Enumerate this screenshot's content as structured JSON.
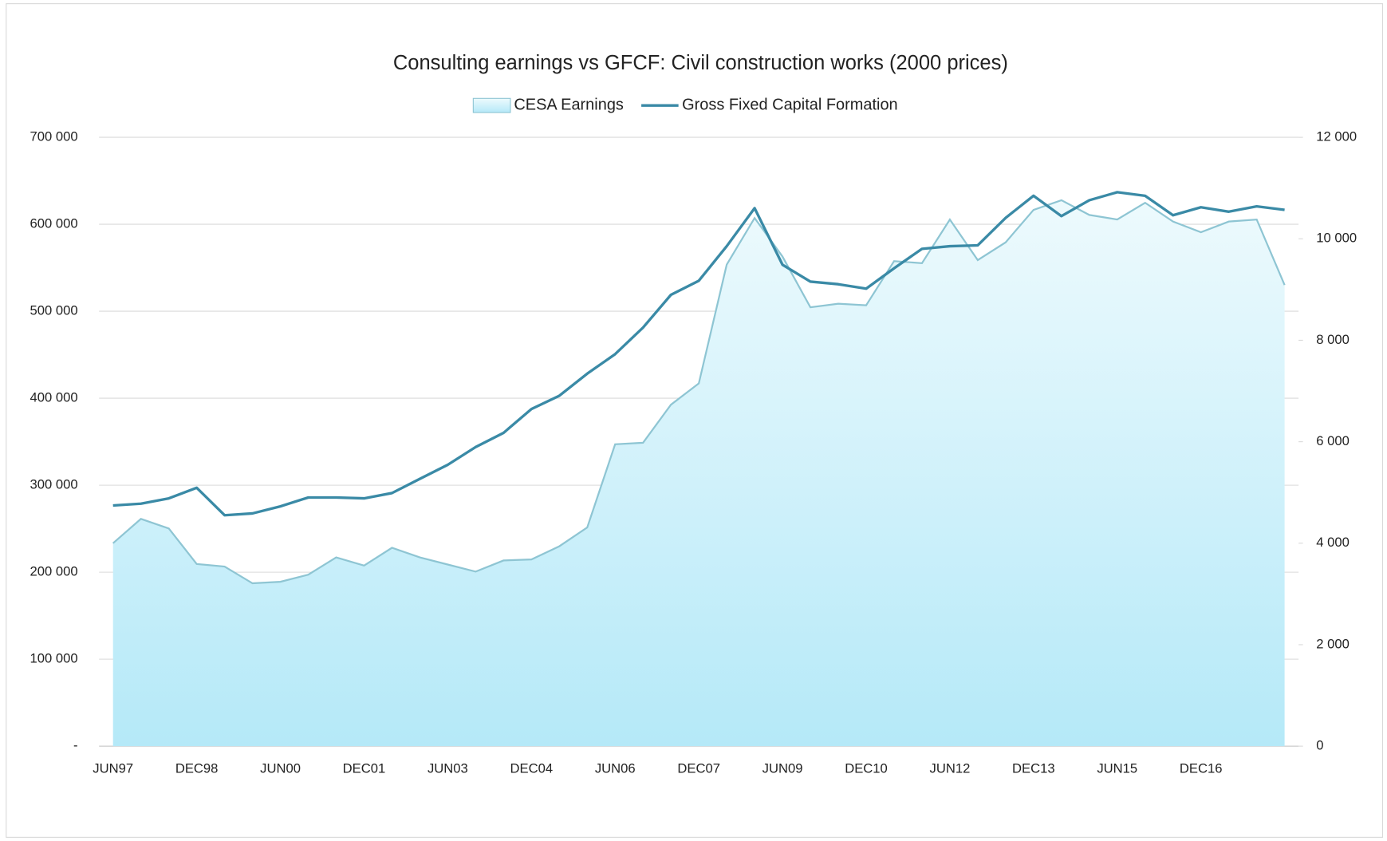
{
  "chart_data": {
    "type": "area-line",
    "title": "Consulting  earnings  vs GFCF:  Civil construction  works (2000 prices)",
    "categories": [
      "JUN97",
      null,
      null,
      "DEC98",
      null,
      null,
      "JUN00",
      null,
      null,
      "DEC01",
      null,
      null,
      "JUN03",
      null,
      null,
      "DEC04",
      null,
      null,
      "JUN06",
      null,
      null,
      "DEC07",
      null,
      null,
      "JUN09",
      null,
      null,
      "DEC10",
      null,
      null,
      "JUN12",
      null,
      null,
      "DEC13",
      null,
      null,
      "JUN15",
      null,
      null,
      "DEC16",
      null,
      null,
      null
    ],
    "series": [
      {
        "name": "CESA Earnings",
        "type": "area",
        "axis": "y2",
        "color": "#8ec5d3",
        "values": [
          4000,
          4480,
          4290,
          3590,
          3540,
          3210,
          3240,
          3380,
          3720,
          3560,
          3910,
          3720,
          3580,
          3440,
          3660,
          3680,
          3940,
          4310,
          5950,
          5980,
          6730,
          7150,
          9490,
          10410,
          9650,
          8650,
          8720,
          8690,
          9560,
          9520,
          10380,
          9580,
          9930,
          10570,
          10760,
          10470,
          10380,
          10710,
          10340,
          10130,
          10340,
          10380,
          9090
        ]
      },
      {
        "name": "Gross Fixed Capital Formation",
        "type": "line",
        "axis": "y",
        "color": "#3a8aa6",
        "values": [
          276700,
          278800,
          284900,
          297100,
          265500,
          267600,
          275700,
          285900,
          285900,
          284900,
          291000,
          307300,
          323500,
          343900,
          360200,
          387600,
          402900,
          428300,
          450700,
          481200,
          518900,
          535100,
          574800,
          618600,
          553500,
          534100,
          531100,
          526000,
          549400,
          571800,
          574800,
          575800,
          607400,
          632800,
          609400,
          627700,
          636900,
          632800,
          610400,
          619600,
          614500,
          620600,
          616600
        ]
      }
    ],
    "ylim": [
      0,
      700000
    ],
    "yticks": [
      {
        "value": 0,
        "label": "-"
      },
      {
        "value": 100000,
        "label": "100 000"
      },
      {
        "value": 200000,
        "label": "200 000"
      },
      {
        "value": 300000,
        "label": "300 000"
      },
      {
        "value": 400000,
        "label": "400 000"
      },
      {
        "value": 500000,
        "label": "500 000"
      },
      {
        "value": 600000,
        "label": "600 000"
      },
      {
        "value": 700000,
        "label": "700 000"
      }
    ],
    "y2lim": [
      0,
      12000
    ],
    "y2ticks": [
      0,
      {
        "value": 2000,
        "label": "2 000"
      },
      {
        "value": 4000,
        "label": "4 000"
      },
      {
        "value": 6000,
        "label": "6 000"
      },
      {
        "value": 8000,
        "label": "8 000"
      },
      {
        "value": 10000,
        "label": "10 000"
      },
      {
        "value": 12000,
        "label": "12 000"
      }
    ],
    "grid": true,
    "legend": "top"
  }
}
